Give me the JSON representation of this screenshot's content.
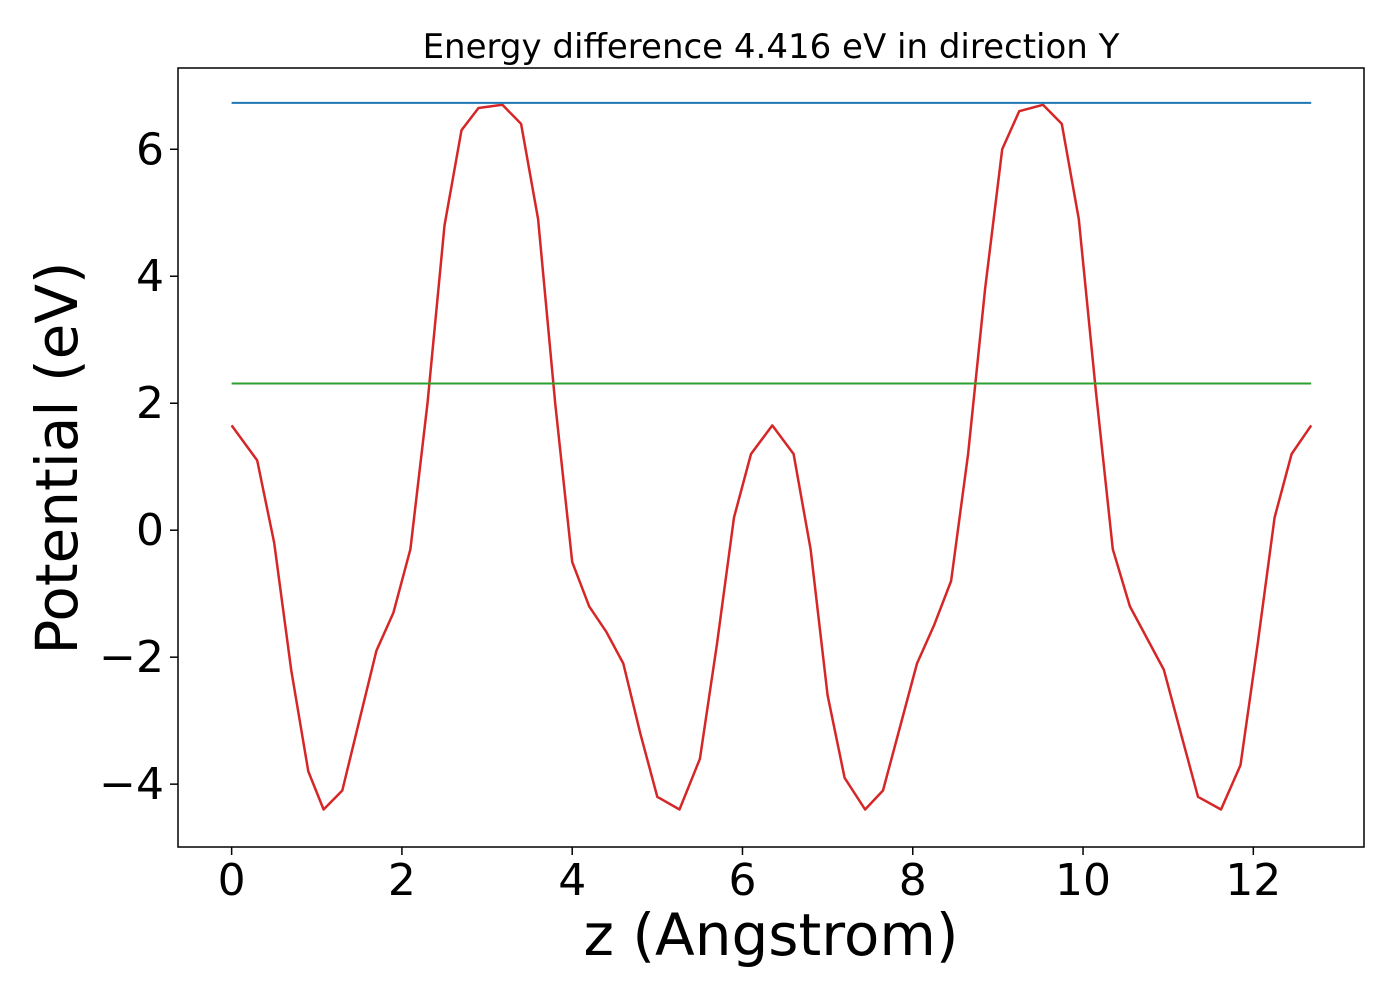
{
  "chart_data": {
    "type": "line",
    "title": "Energy difference 4.416 eV in direction Y",
    "xlabel": "z (Angstrom)",
    "ylabel": "Potential (eV)",
    "xlim": [
      -0.63,
      13.3
    ],
    "ylim": [
      -4.99,
      7.28
    ],
    "xticks": [
      0,
      2,
      4,
      6,
      8,
      10,
      12
    ],
    "yticks": [
      -4,
      -2,
      0,
      2,
      4,
      6
    ],
    "grid": false,
    "legend": "none",
    "series": [
      {
        "color": "#d62728",
        "x": [
          0.0,
          0.3,
          0.5,
          0.7,
          0.9,
          1.08,
          1.3,
          1.5,
          1.7,
          1.9,
          2.1,
          2.3,
          2.5,
          2.7,
          2.9,
          3.18,
          3.4,
          3.6,
          3.8,
          4.0,
          4.2,
          4.4,
          4.6,
          4.8,
          5.0,
          5.26,
          5.5,
          5.7,
          5.9,
          6.1,
          6.35,
          6.6,
          6.8,
          7.0,
          7.2,
          7.44,
          7.65,
          7.85,
          8.05,
          8.25,
          8.45,
          8.65,
          8.85,
          9.05,
          9.25,
          9.53,
          9.75,
          9.95,
          10.15,
          10.35,
          10.55,
          10.75,
          10.95,
          11.15,
          11.35,
          11.62,
          11.85,
          12.05,
          12.25,
          12.45,
          12.68
        ],
        "y": [
          1.65,
          1.1,
          -0.2,
          -2.2,
          -3.8,
          -4.4,
          -4.1,
          -3.0,
          -1.9,
          -1.3,
          -0.3,
          2.0,
          4.8,
          6.3,
          6.65,
          6.7,
          6.4,
          4.9,
          2.0,
          -0.5,
          -1.2,
          -1.6,
          -2.1,
          -3.2,
          -4.2,
          -4.4,
          -3.6,
          -1.8,
          0.2,
          1.2,
          1.65,
          1.2,
          -0.3,
          -2.6,
          -3.9,
          -4.4,
          -4.1,
          -3.1,
          -2.1,
          -1.5,
          -0.8,
          1.2,
          3.8,
          6.0,
          6.6,
          6.7,
          6.4,
          4.9,
          2.2,
          -0.3,
          -1.2,
          -1.7,
          -2.2,
          -3.2,
          -4.2,
          -4.4,
          -3.7,
          -1.8,
          0.2,
          1.2,
          1.65
        ]
      },
      {
        "color": "#1f77b4",
        "x": [
          0.0,
          12.68
        ],
        "y": [
          6.73,
          6.73
        ]
      },
      {
        "color": "#2ca02c",
        "x": [
          0.0,
          12.68
        ],
        "y": [
          2.31,
          2.31
        ]
      }
    ]
  }
}
